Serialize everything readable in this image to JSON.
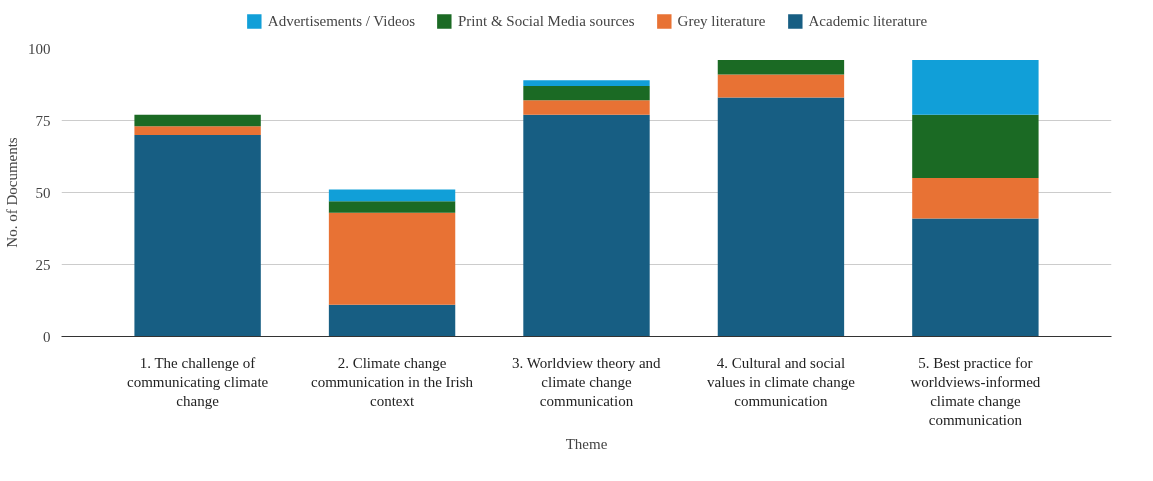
{
  "chart_data": {
    "type": "bar",
    "stacked": true,
    "xlabel": "Theme",
    "ylabel": "No. of Documents",
    "categories": [
      "1. The challenge of communicating climate change",
      "2. Climate change communication in the Irish context",
      "3. Worldview theory and climate change communication",
      "4. Cultural and social values in climate change communication",
      "5. Best practice for worldviews-informed climate change communication"
    ],
    "series": [
      {
        "name": "Academic literature",
        "color": "#175e83",
        "values": [
          70,
          11,
          77,
          83,
          41
        ]
      },
      {
        "name": "Grey literature",
        "color": "#e87234",
        "values": [
          3,
          32,
          5,
          8,
          14
        ]
      },
      {
        "name": "Print & Social Media sources",
        "color": "#1b6a24",
        "values": [
          4,
          4,
          5,
          5,
          22
        ]
      },
      {
        "name": "Advertisements / Videos",
        "color": "#119fd8",
        "values": [
          0,
          4,
          2,
          0,
          19
        ]
      }
    ],
    "ylim": [
      0,
      100
    ],
    "yticks": [
      0,
      25,
      50,
      75,
      100
    ],
    "grid": "y",
    "legend": "top"
  }
}
